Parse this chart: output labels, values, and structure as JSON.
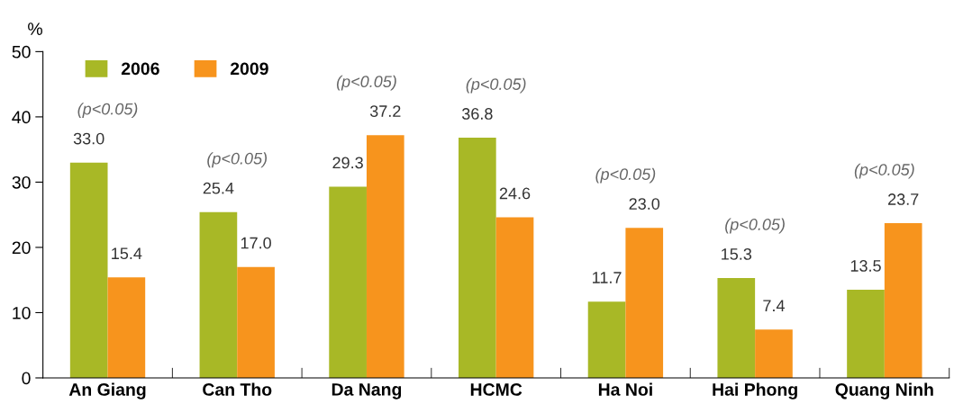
{
  "chart_data": {
    "type": "bar",
    "ylabel": "%",
    "categories": [
      "An Giang",
      "Can Tho",
      "Da Nang",
      "HCMC",
      "Ha Noi",
      "Hai Phong",
      "Quang Ninh"
    ],
    "series": [
      {
        "name": "2006",
        "color": "#a8b826",
        "values": [
          33.0,
          25.4,
          29.3,
          36.8,
          11.7,
          15.3,
          13.5
        ],
        "value_labels": [
          "33.0",
          "25.4",
          "29.3",
          "36.8",
          "11.7",
          "15.3",
          "13.5"
        ]
      },
      {
        "name": "2009",
        "color": "#f7941d",
        "values": [
          15.4,
          17.0,
          37.2,
          24.6,
          23.0,
          7.4,
          23.7
        ],
        "value_labels": [
          "15.4",
          "17.0",
          "37.2",
          "24.6",
          "23.0",
          "7.4",
          "23.7"
        ]
      }
    ],
    "ylim": [
      0,
      50
    ],
    "yticks": [
      0,
      10,
      20,
      30,
      40,
      50
    ],
    "grid": false,
    "legend": "top left",
    "annotations": [
      "(p<0.05)",
      "(p<0.05)",
      "(p<0.05)",
      "(p<0.05)",
      "(p<0.05)",
      "(p<0.05)",
      "(p<0.05)"
    ]
  }
}
